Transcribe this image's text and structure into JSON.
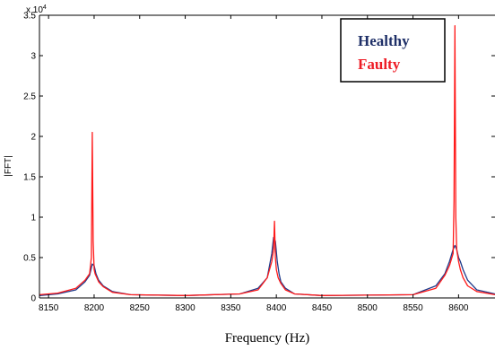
{
  "chart_data": {
    "type": "line",
    "title": "",
    "xlabel": "Frequency (Hz)",
    "ylabel": "|FFT|",
    "y_exponent_label": "x 10",
    "y_exponent_power": "4",
    "xlim": [
      8140,
      8640
    ],
    "ylim": [
      0,
      3.5
    ],
    "x_ticks": [
      8150,
      8200,
      8250,
      8300,
      8350,
      8400,
      8450,
      8500,
      8550,
      8600
    ],
    "x_tick_labels": [
      "8150",
      "8200",
      "8250",
      "8300",
      "8350",
      "8400",
      "8450",
      "8500",
      "8550",
      "8600"
    ],
    "y_ticks": [
      0,
      0.5,
      1,
      1.5,
      2,
      2.5,
      3,
      3.5
    ],
    "y_tick_labels": [
      "0",
      "0.5",
      "1",
      "1.5",
      "2",
      "2.5",
      "3",
      "3.5"
    ],
    "legend_position": "top-right",
    "grid": false,
    "series": [
      {
        "name": "Healthy",
        "color": "#1f3a8a",
        "label_color": "#1f3068",
        "x": [
          8140,
          8160,
          8180,
          8190,
          8195,
          8198,
          8200,
          8202,
          8205,
          8210,
          8220,
          8240,
          8300,
          8360,
          8380,
          8390,
          8395,
          8397,
          8399,
          8401,
          8403,
          8405,
          8410,
          8420,
          8450,
          8550,
          8575,
          8585,
          8590,
          8594,
          8596,
          8598,
          8600,
          8602,
          8605,
          8610,
          8620,
          8640
        ],
        "values": [
          0.03,
          0.05,
          0.1,
          0.2,
          0.28,
          0.42,
          0.4,
          0.3,
          0.22,
          0.15,
          0.08,
          0.04,
          0.03,
          0.05,
          0.12,
          0.25,
          0.55,
          0.75,
          0.7,
          0.45,
          0.3,
          0.2,
          0.12,
          0.05,
          0.03,
          0.04,
          0.15,
          0.3,
          0.45,
          0.6,
          0.65,
          0.6,
          0.5,
          0.45,
          0.35,
          0.22,
          0.1,
          0.05
        ]
      },
      {
        "name": "Faulty",
        "color": "#ff1a1a",
        "label_color": "#ee1c25",
        "x": [
          8140,
          8160,
          8180,
          8190,
          8195,
          8197,
          8198,
          8199,
          8200,
          8201,
          8203,
          8205,
          8210,
          8220,
          8240,
          8300,
          8360,
          8380,
          8390,
          8395,
          8397,
          8398,
          8399,
          8400,
          8402,
          8405,
          8410,
          8420,
          8450,
          8550,
          8575,
          8585,
          8590,
          8594,
          8595,
          8596,
          8597,
          8598,
          8600,
          8602,
          8605,
          8610,
          8620,
          8640
        ],
        "values": [
          0.04,
          0.06,
          0.12,
          0.22,
          0.3,
          0.5,
          2.05,
          0.7,
          0.35,
          0.3,
          0.25,
          0.2,
          0.14,
          0.07,
          0.04,
          0.03,
          0.05,
          0.1,
          0.25,
          0.45,
          0.6,
          0.95,
          0.5,
          0.35,
          0.25,
          0.18,
          0.1,
          0.05,
          0.03,
          0.04,
          0.12,
          0.28,
          0.4,
          0.55,
          1.2,
          3.37,
          1.0,
          0.6,
          0.45,
          0.35,
          0.25,
          0.15,
          0.08,
          0.04
        ]
      }
    ]
  }
}
